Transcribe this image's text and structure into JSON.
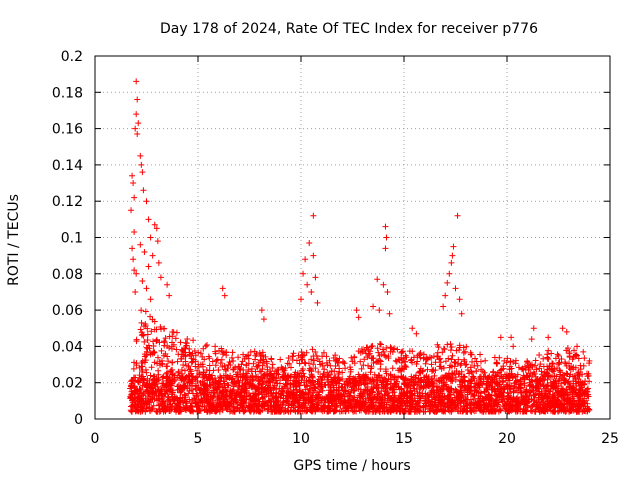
{
  "chart_data": {
    "type": "scatter",
    "title": "Day 178 of 2024, Rate Of TEC Index for receiver p776",
    "xlabel": "GPS time / hours",
    "ylabel": "ROTI / TECUs",
    "xlim": [
      0,
      25
    ],
    "ylim": [
      0,
      0.2
    ],
    "x_ticks": [
      0,
      5,
      10,
      15,
      20,
      25
    ],
    "y_ticks": [
      0,
      0.02,
      0.04,
      0.06,
      0.08,
      0.1,
      0.12,
      0.14,
      0.16,
      0.18,
      0.2
    ],
    "x_tick_labels": [
      "0",
      "5",
      "10",
      "15",
      "20",
      "25"
    ],
    "y_tick_labels": [
      "0",
      "0.02",
      "0.04",
      "0.06",
      "0.08",
      "0.1",
      "0.12",
      "0.14",
      "0.16",
      "0.18",
      "0.2"
    ],
    "grid": true,
    "legend": "none",
    "marker": "+",
    "color": "#ff0000",
    "data_extent_x": [
      1.7,
      24.0
    ],
    "series": [
      {
        "points": [
          [
            2.0,
            0.186
          ],
          [
            2.05,
            0.176
          ],
          [
            2.0,
            0.168
          ],
          [
            2.1,
            0.163
          ],
          [
            1.95,
            0.16
          ],
          [
            2.05,
            0.157
          ],
          [
            2.2,
            0.145
          ],
          [
            2.25,
            0.14
          ],
          [
            2.3,
            0.136
          ],
          [
            1.8,
            0.134
          ],
          [
            1.85,
            0.13
          ],
          [
            2.35,
            0.126
          ],
          [
            1.9,
            0.122
          ],
          [
            2.5,
            0.12
          ],
          [
            1.75,
            0.115
          ],
          [
            2.6,
            0.11
          ],
          [
            2.9,
            0.107
          ],
          [
            3.0,
            0.105
          ],
          [
            1.9,
            0.103
          ],
          [
            2.7,
            0.1
          ],
          [
            3.05,
            0.098
          ],
          [
            2.2,
            0.096
          ],
          [
            1.8,
            0.094
          ],
          [
            2.4,
            0.092
          ],
          [
            2.8,
            0.09
          ],
          [
            1.85,
            0.088
          ],
          [
            3.1,
            0.086
          ],
          [
            2.6,
            0.084
          ],
          [
            1.9,
            0.082
          ],
          [
            2.0,
            0.08
          ],
          [
            3.2,
            0.078
          ],
          [
            2.3,
            0.076
          ],
          [
            3.5,
            0.074
          ],
          [
            2.5,
            0.072
          ],
          [
            1.95,
            0.07
          ],
          [
            3.6,
            0.068
          ],
          [
            2.7,
            0.066
          ],
          [
            6.2,
            0.072
          ],
          [
            6.3,
            0.068
          ],
          [
            8.1,
            0.06
          ],
          [
            8.2,
            0.055
          ],
          [
            10.6,
            0.112
          ],
          [
            10.4,
            0.097
          ],
          [
            10.6,
            0.09
          ],
          [
            10.2,
            0.088
          ],
          [
            10.1,
            0.08
          ],
          [
            10.7,
            0.078
          ],
          [
            10.3,
            0.074
          ],
          [
            10.5,
            0.07
          ],
          [
            10.0,
            0.066
          ],
          [
            10.8,
            0.064
          ],
          [
            12.7,
            0.06
          ],
          [
            12.8,
            0.056
          ],
          [
            14.1,
            0.106
          ],
          [
            14.15,
            0.1
          ],
          [
            14.1,
            0.094
          ],
          [
            13.7,
            0.077
          ],
          [
            14.0,
            0.074
          ],
          [
            14.2,
            0.07
          ],
          [
            13.5,
            0.062
          ],
          [
            13.8,
            0.06
          ],
          [
            14.3,
            0.058
          ],
          [
            15.4,
            0.05
          ],
          [
            15.6,
            0.047
          ],
          [
            17.6,
            0.112
          ],
          [
            17.4,
            0.095
          ],
          [
            17.35,
            0.09
          ],
          [
            17.3,
            0.086
          ],
          [
            17.2,
            0.08
          ],
          [
            17.1,
            0.075
          ],
          [
            17.5,
            0.072
          ],
          [
            17.0,
            0.068
          ],
          [
            17.7,
            0.066
          ],
          [
            16.9,
            0.062
          ],
          [
            17.8,
            0.058
          ],
          [
            19.7,
            0.045
          ],
          [
            20.2,
            0.045
          ],
          [
            20.3,
            0.04
          ],
          [
            21.3,
            0.05
          ],
          [
            21.2,
            0.044
          ],
          [
            22.0,
            0.045
          ],
          [
            22.7,
            0.05
          ],
          [
            22.9,
            0.048
          ],
          [
            23.4,
            0.04
          ],
          [
            23.7,
            0.037
          ],
          [
            24.0,
            0.032
          ]
        ],
        "dense_envelope": [
          [
            2,
            0.06
          ],
          [
            3,
            0.05
          ],
          [
            4,
            0.045
          ],
          [
            5,
            0.038
          ],
          [
            6,
            0.036
          ],
          [
            7,
            0.032
          ],
          [
            8,
            0.034
          ],
          [
            9,
            0.03
          ],
          [
            10,
            0.035
          ],
          [
            11,
            0.034
          ],
          [
            12,
            0.03
          ],
          [
            13,
            0.035
          ],
          [
            14,
            0.038
          ],
          [
            15,
            0.035
          ],
          [
            16,
            0.032
          ],
          [
            17,
            0.04
          ],
          [
            18,
            0.036
          ],
          [
            19,
            0.03
          ],
          [
            20,
            0.03
          ],
          [
            21,
            0.028
          ],
          [
            22,
            0.034
          ],
          [
            23,
            0.036
          ],
          [
            24,
            0.03
          ]
        ]
      }
    ]
  }
}
